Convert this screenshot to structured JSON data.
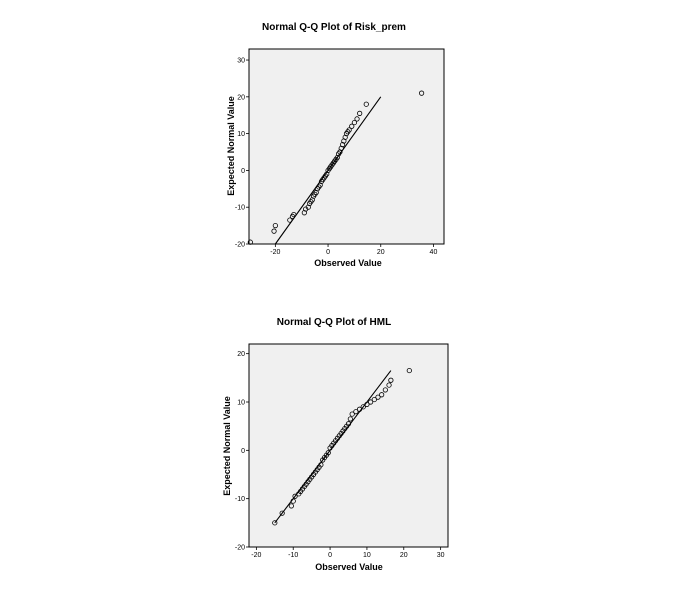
{
  "chart_data": [
    {
      "type": "scatter",
      "title": "Normal Q-Q Plot of Risk_prem",
      "xlabel": "Observed Value",
      "ylabel": "Expected Normal Value",
      "xlim": [
        -30,
        44
      ],
      "ylim": [
        -20,
        33
      ],
      "xticks": [
        -20,
        0,
        20,
        40
      ],
      "yticks": [
        -20,
        -10,
        0,
        10,
        20,
        30
      ],
      "reference_line": [
        [
          -20,
          -20
        ],
        [
          20,
          20
        ]
      ],
      "points": {
        "x": [
          -29.5,
          -20.5,
          -20,
          -14.5,
          -13.5,
          -13,
          -9,
          -8.5,
          -7.5,
          -7,
          -6.5,
          -6,
          -5.5,
          -5,
          -4.5,
          -4,
          -3.5,
          -3,
          -2.5,
          -2,
          -1.5,
          -1,
          -0.5,
          0,
          0.5,
          1,
          1.5,
          2,
          2.5,
          3,
          3.5,
          4,
          4.5,
          5,
          5.5,
          6,
          6.5,
          7,
          7.5,
          8,
          9,
          10,
          11,
          12,
          14.5,
          35.5
        ],
        "y": [
          -19.5,
          -16.5,
          -15,
          -13.5,
          -12.5,
          -12,
          -11.5,
          -10.5,
          -10,
          -9,
          -8.5,
          -8,
          -7,
          -6.5,
          -6,
          -5,
          -4.5,
          -4,
          -3,
          -2.5,
          -2,
          -1.5,
          -1,
          0,
          0.5,
          1,
          1.5,
          2,
          2.5,
          3,
          3.5,
          4.5,
          5,
          6,
          7,
          8,
          9,
          10,
          10.5,
          11,
          12,
          13,
          14,
          15.5,
          18,
          21
        ]
      }
    },
    {
      "type": "scatter",
      "title": "Normal Q-Q Plot of HML",
      "xlabel": "Observed Value",
      "ylabel": "Expected Normal Value",
      "xlim": [
        -22,
        32
      ],
      "ylim": [
        -20,
        22
      ],
      "xticks": [
        -20,
        -10,
        0,
        10,
        20,
        30
      ],
      "yticks": [
        -20,
        -10,
        0,
        10,
        20
      ],
      "reference_line": [
        [
          -15,
          -15
        ],
        [
          16.5,
          16.5
        ]
      ],
      "points": {
        "x": [
          -15,
          -13,
          -10.5,
          -10,
          -9.5,
          -8.5,
          -8,
          -7.5,
          -7,
          -6.5,
          -6,
          -5.5,
          -5,
          -4.5,
          -4,
          -3.5,
          -3,
          -2.5,
          -2,
          -1.5,
          -1,
          -0.5,
          0,
          0.5,
          1,
          1.5,
          2,
          2.5,
          3,
          3.5,
          4,
          4.5,
          5,
          5.5,
          6,
          7,
          8,
          9,
          10,
          11,
          12,
          13,
          14,
          15,
          16,
          16.5,
          21.5
        ],
        "y": [
          -15,
          -13,
          -11.5,
          -10.5,
          -9.5,
          -9,
          -8.5,
          -8,
          -7.5,
          -7,
          -6.5,
          -6,
          -5.5,
          -5,
          -4.5,
          -4,
          -3.5,
          -3,
          -2,
          -1.5,
          -1,
          -0.5,
          0.5,
          1,
          1.5,
          2,
          2.5,
          3,
          3.5,
          4,
          4.5,
          5,
          5.5,
          6.5,
          7.5,
          8,
          8.5,
          9,
          9.5,
          10,
          10.5,
          11,
          11.5,
          12.5,
          13.5,
          14.5,
          16.5
        ]
      }
    }
  ]
}
